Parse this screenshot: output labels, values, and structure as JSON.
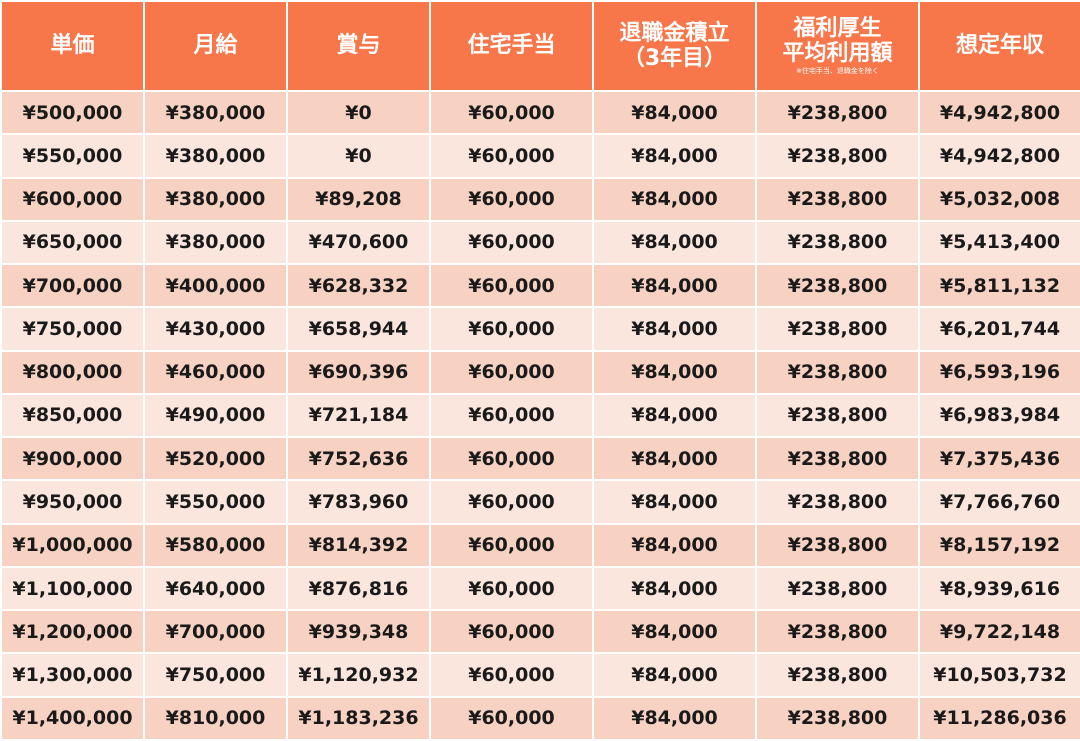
{
  "colors": {
    "header_bg": "#f7764a",
    "header_text": "#ffffff",
    "row_odd": "#f7d2c3",
    "row_even": "#fbe6de",
    "cell_text": "#1a1a1a"
  },
  "headers": {
    "unit_price": "単価",
    "monthly_salary": "月給",
    "bonus": "賞与",
    "housing_allowance": "住宅手当",
    "retirement_line1": "退職金積立",
    "retirement_line2": "（3年目）",
    "welfare_line1": "福利厚生",
    "welfare_line2": "平均利用額",
    "welfare_note": "※住宅手当、退職金を除く",
    "annual_income": "想定年収"
  },
  "rows": [
    [
      "¥500,000",
      "¥380,000",
      "¥0",
      "¥60,000",
      "¥84,000",
      "¥238,800",
      "¥4,942,800"
    ],
    [
      "¥550,000",
      "¥380,000",
      "¥0",
      "¥60,000",
      "¥84,000",
      "¥238,800",
      "¥4,942,800"
    ],
    [
      "¥600,000",
      "¥380,000",
      "¥89,208",
      "¥60,000",
      "¥84,000",
      "¥238,800",
      "¥5,032,008"
    ],
    [
      "¥650,000",
      "¥380,000",
      "¥470,600",
      "¥60,000",
      "¥84,000",
      "¥238,800",
      "¥5,413,400"
    ],
    [
      "¥700,000",
      "¥400,000",
      "¥628,332",
      "¥60,000",
      "¥84,000",
      "¥238,800",
      "¥5,811,132"
    ],
    [
      "¥750,000",
      "¥430,000",
      "¥658,944",
      "¥60,000",
      "¥84,000",
      "¥238,800",
      "¥6,201,744"
    ],
    [
      "¥800,000",
      "¥460,000",
      "¥690,396",
      "¥60,000",
      "¥84,000",
      "¥238,800",
      "¥6,593,196"
    ],
    [
      "¥850,000",
      "¥490,000",
      "¥721,184",
      "¥60,000",
      "¥84,000",
      "¥238,800",
      "¥6,983,984"
    ],
    [
      "¥900,000",
      "¥520,000",
      "¥752,636",
      "¥60,000",
      "¥84,000",
      "¥238,800",
      "¥7,375,436"
    ],
    [
      "¥950,000",
      "¥550,000",
      "¥783,960",
      "¥60,000",
      "¥84,000",
      "¥238,800",
      "¥7,766,760"
    ],
    [
      "¥1,000,000",
      "¥580,000",
      "¥814,392",
      "¥60,000",
      "¥84,000",
      "¥238,800",
      "¥8,157,192"
    ],
    [
      "¥1,100,000",
      "¥640,000",
      "¥876,816",
      "¥60,000",
      "¥84,000",
      "¥238,800",
      "¥8,939,616"
    ],
    [
      "¥1,200,000",
      "¥700,000",
      "¥939,348",
      "¥60,000",
      "¥84,000",
      "¥238,800",
      "¥9,722,148"
    ],
    [
      "¥1,300,000",
      "¥750,000",
      "¥1,120,932",
      "¥60,000",
      "¥84,000",
      "¥238,800",
      "¥10,503,732"
    ],
    [
      "¥1,400,000",
      "¥810,000",
      "¥1,183,236",
      "¥60,000",
      "¥84,000",
      "¥238,800",
      "¥11,286,036"
    ]
  ]
}
